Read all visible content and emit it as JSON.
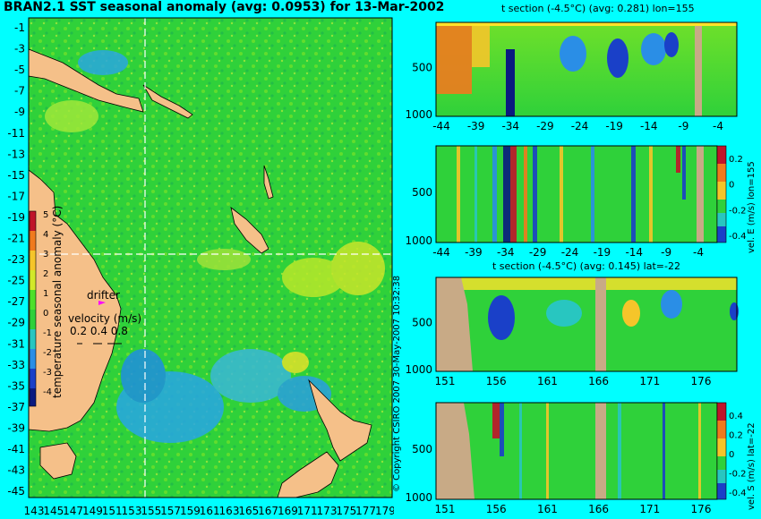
{
  "title": "BRAN2.1 SST seasonal anomaly (avg: 0.0953) for 13-Mar-2002",
  "map": {
    "x_ticks": [
      "143",
      "145",
      "147",
      "149",
      "151",
      "153",
      "155",
      "157",
      "159",
      "161",
      "163",
      "165",
      "167",
      "169",
      "171",
      "173",
      "175",
      "177",
      "179"
    ],
    "y_ticks": [
      "-1",
      "-3",
      "-5",
      "-7",
      "-9",
      "-11",
      "-13",
      "-15",
      "-17",
      "-19",
      "-21",
      "-23",
      "-25",
      "-27",
      "-29",
      "-31",
      "-33",
      "-35",
      "-37",
      "-39",
      "-41",
      "-43",
      "-45"
    ],
    "colorbar_label": "temperature seasonal anomaly (°C)",
    "colorbar_ticks": [
      "5",
      "4",
      "3",
      "2",
      "1",
      "0",
      "-1",
      "-2",
      "-3",
      "-4"
    ],
    "drifter_label": "drifter",
    "velocity_label": "velocity (m/s)",
    "velocity_values": "0.2 0.4 0.8",
    "section_lon": 155,
    "section_lat": -22
  },
  "panels": [
    {
      "title": "t section (-4.5°C) (avg: 0.281) lon=155",
      "x_ticks": [
        "-44",
        "-39",
        "-34",
        "-29",
        "-24",
        "-19",
        "-14",
        "-9",
        "-4"
      ],
      "y_ticks": [
        "500",
        "1000"
      ],
      "side_label": ""
    },
    {
      "title": "",
      "x_ticks": [
        "-44",
        "-39",
        "-34",
        "-29",
        "-24",
        "-19",
        "-14",
        "-9",
        "-4"
      ],
      "y_ticks": [
        "500",
        "1000"
      ],
      "side_label": "vel. E (m/s) lon=155",
      "cbar_ticks": [
        "0.2",
        "0",
        "-0.2",
        "-0.4"
      ]
    },
    {
      "title": "t section (-4.5°C) (avg: 0.145) lat=-22",
      "x_ticks": [
        "151",
        "156",
        "161",
        "166",
        "171",
        "176"
      ],
      "y_ticks": [
        "500",
        "1000"
      ],
      "side_label": ""
    },
    {
      "title": "",
      "x_ticks": [
        "151",
        "156",
        "161",
        "166",
        "171",
        "176"
      ],
      "y_ticks": [
        "500",
        "1000"
      ],
      "side_label": "vel. S (m/s) lat=-22",
      "cbar_ticks": [
        "0.4",
        "0.2",
        "0",
        "-0.2",
        "-0.4"
      ]
    }
  ],
  "copyright": "© Copyright CSIRO 2007  30-May-2007 10:32:38",
  "chart_data": {
    "type": "heatmap",
    "title": "BRAN2.1 SST seasonal anomaly (avg: 0.0953) for 13-Mar-2002",
    "xlabel": "",
    "ylabel": "",
    "xlim": [
      143,
      180
    ],
    "ylim": [
      -45,
      0
    ],
    "colorbar": {
      "label": "temperature seasonal anomaly (°C)",
      "range": [
        -4,
        5
      ]
    },
    "sections": [
      {
        "name": "t section (-4.5°C) (avg: 0.281) lon=155",
        "xlim": [
          -45,
          -1
        ],
        "ylim": [
          1050,
          0
        ]
      },
      {
        "name": "vel. E (m/s) lon=155",
        "xlim": [
          -45,
          -1
        ],
        "ylim": [
          1050,
          0
        ],
        "crange": [
          -0.4,
          0.4
        ]
      },
      {
        "name": "t section (-4.5°C) (avg: 0.145) lat=-22",
        "xlim": [
          150,
          180
        ],
        "ylim": [
          1050,
          0
        ]
      },
      {
        "name": "vel. S (m/s) lat=-22",
        "xlim": [
          150,
          180
        ],
        "ylim": [
          1050,
          0
        ],
        "crange": [
          -0.4,
          0.4
        ]
      }
    ]
  },
  "colors": {
    "background": "#00ffff",
    "land": "#f5c089",
    "field": "#2fd13a",
    "section_land": "#c8aa86"
  }
}
